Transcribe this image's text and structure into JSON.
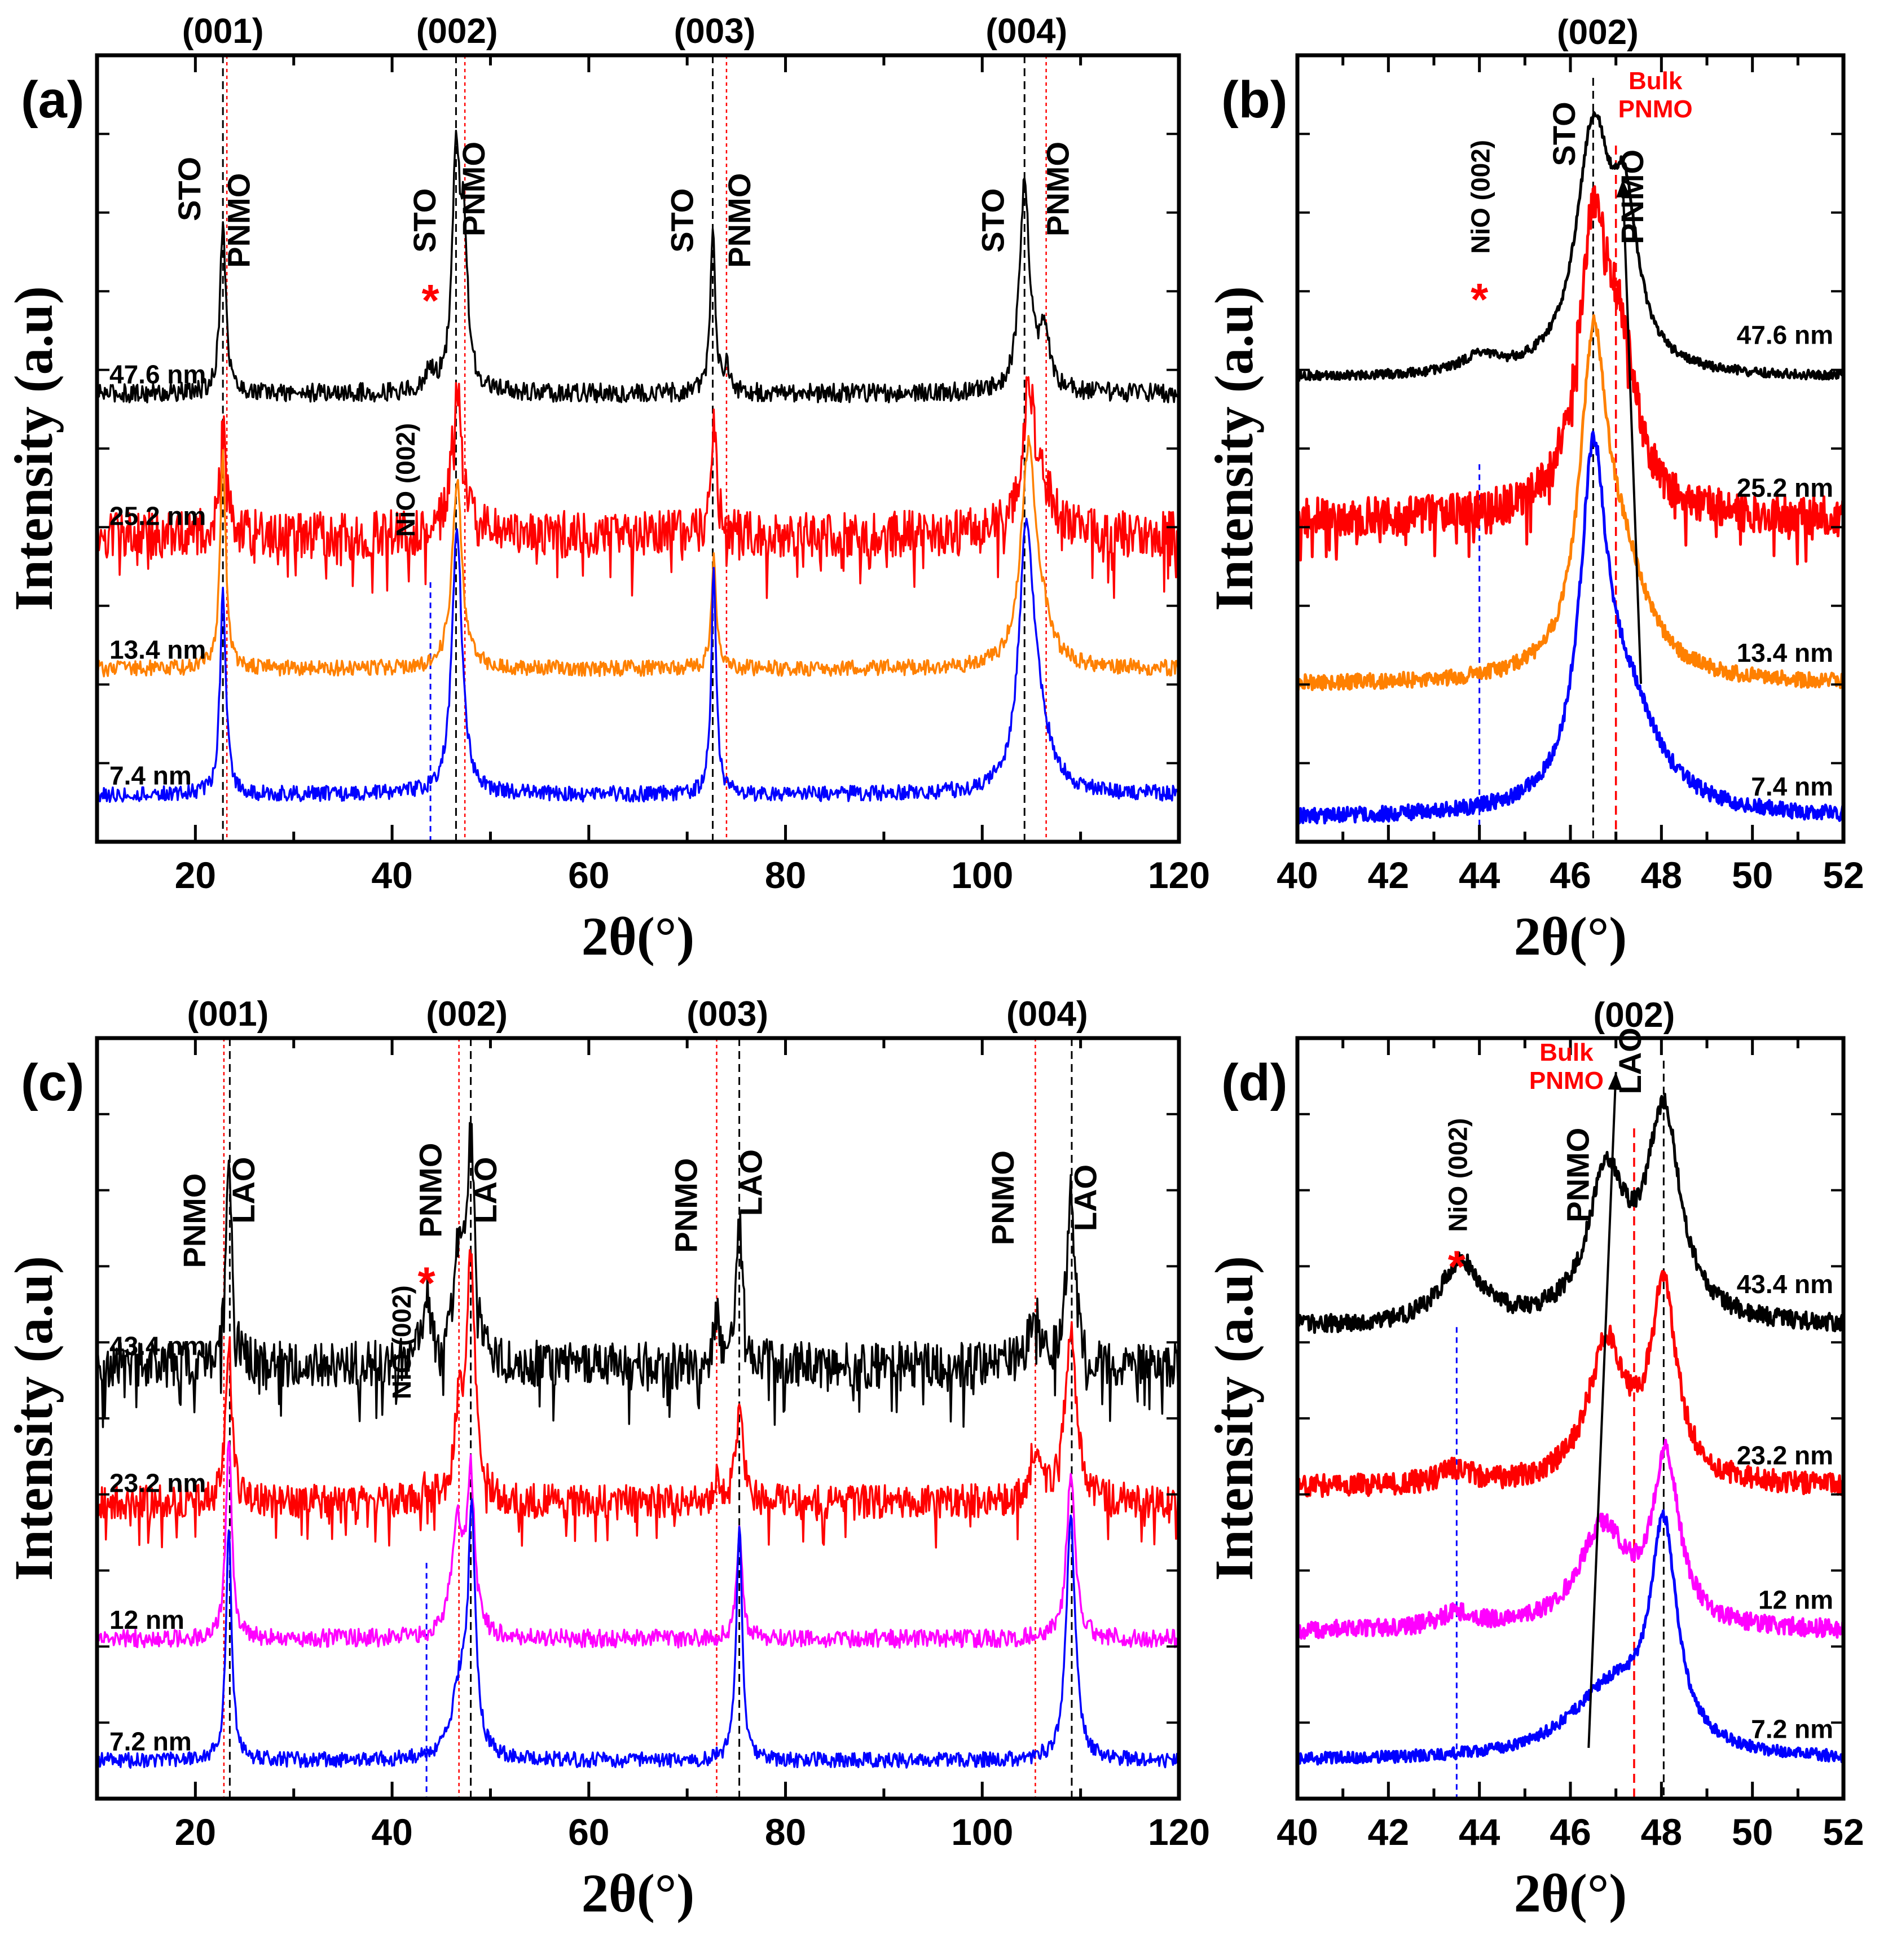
{
  "chart_data": [
    {
      "id": "a",
      "type": "line",
      "panel_label": "(a)",
      "xlabel": "2θ(°)",
      "ylabel": "Intensity (a.u)",
      "xlim": [
        10,
        120
      ],
      "xticks": [
        20,
        40,
        60,
        80,
        100,
        120
      ],
      "reflections": [
        {
          "label": "(001)",
          "x": 22.8
        },
        {
          "label": "(002)",
          "x": 46.6
        },
        {
          "label": "(003)",
          "x": 72.8
        },
        {
          "label": "(004)",
          "x": 104.5
        }
      ],
      "substrate": "STO",
      "film": "PNMO",
      "substrate_lines": [
        22.8,
        46.5,
        72.6,
        104.3
      ],
      "film_lines": [
        23.2,
        47.4,
        74.0,
        106.5
      ],
      "nio": {
        "label": "NiO (002)",
        "x": 43.9,
        "marker": "*"
      },
      "peak_labels": [
        {
          "text": "STO",
          "x": 20.5,
          "y": 0.83
        },
        {
          "text": "PNMO",
          "x": 25.5,
          "y": 0.79
        },
        {
          "text": "STO",
          "x": 44.4,
          "y": 0.79
        },
        {
          "text": "PNMO",
          "x": 49.4,
          "y": 0.83
        },
        {
          "text": "STO",
          "x": 70.6,
          "y": 0.79
        },
        {
          "text": "PNMO",
          "x": 76.4,
          "y": 0.79
        },
        {
          "text": "STO",
          "x": 102.2,
          "y": 0.79
        },
        {
          "text": "PNMO",
          "x": 108.8,
          "y": 0.83
        }
      ],
      "series": [
        {
          "name": "47.6 nm",
          "color": "#000000",
          "baseline": 0.57,
          "noise": 0.012,
          "peaks": [
            [
              22.8,
              0.22,
              0.35
            ],
            [
              43.9,
              0.025,
              0.6
            ],
            [
              46.5,
              0.29,
              0.45
            ],
            [
              47.3,
              0.18,
              0.45
            ],
            [
              72.6,
              0.21,
              0.3
            ],
            [
              74.0,
              0.03,
              0.4
            ],
            [
              104.3,
              0.26,
              0.6
            ],
            [
              106.3,
              0.07,
              0.7
            ]
          ]
        },
        {
          "name": "25.2 nm",
          "color": "#ff0000",
          "baseline": 0.39,
          "noise": 0.03,
          "peaks": [
            [
              22.8,
              0.13,
              0.4
            ],
            [
              46.6,
              0.19,
              0.6
            ],
            [
              72.7,
              0.15,
              0.35
            ],
            [
              104.7,
              0.18,
              0.8
            ],
            [
              106.3,
              0.04,
              1.2
            ]
          ]
        },
        {
          "name": "13.4 nm",
          "color": "#ff8000",
          "baseline": 0.22,
          "noise": 0.01,
          "peaks": [
            [
              22.8,
              0.27,
              0.35
            ],
            [
              46.6,
              0.24,
              0.6
            ],
            [
              72.7,
              0.14,
              0.3
            ],
            [
              104.7,
              0.27,
              0.9
            ],
            [
              106.0,
              0.04,
              1.2
            ]
          ]
        },
        {
          "name": "7.4 nm",
          "color": "#0000ff",
          "baseline": 0.06,
          "noise": 0.01,
          "peaks": [
            [
              22.8,
              0.26,
              0.35
            ],
            [
              46.6,
              0.34,
              0.6
            ],
            [
              72.7,
              0.29,
              0.3
            ],
            [
              104.5,
              0.32,
              0.9
            ],
            [
              105.8,
              0.06,
              1.4
            ]
          ]
        }
      ]
    },
    {
      "id": "b",
      "type": "line",
      "panel_label": "(b)",
      "xlabel": "2θ(°)",
      "ylabel": "Intensity (a.u)",
      "xlim": [
        40,
        52
      ],
      "xticks": [
        40,
        42,
        44,
        46,
        48,
        50,
        52
      ],
      "title": "(002)",
      "substrate_lines": [
        46.5
      ],
      "bulk": {
        "line1": "Bulk",
        "line2": "PNMO",
        "x": 47.0
      },
      "nio": {
        "label": "NiO (002)",
        "x": 44.0,
        "marker": "*"
      },
      "peak_labels": [
        {
          "text": "STO",
          "x": 46.1,
          "y": 0.9
        },
        {
          "text": "PNMO",
          "x": 47.6,
          "y": 0.82
        }
      ],
      "arrow": {
        "x_start": 47.55,
        "x_end": 47.15
      },
      "series": [
        {
          "name": "47.6 nm",
          "color": "#000000",
          "baseline": 0.59,
          "noise": 0.006,
          "peaks": [
            [
              44.0,
              0.02,
              0.5
            ],
            [
              46.5,
              0.3,
              0.45
            ],
            [
              47.2,
              0.18,
              0.35
            ]
          ]
        },
        {
          "name": "25.2 nm",
          "color": "#ff0000",
          "baseline": 0.41,
          "noise": 0.025,
          "peaks": [
            [
              46.5,
              0.34,
              0.4
            ],
            [
              47.1,
              0.17,
              0.45
            ]
          ]
        },
        {
          "name": "13.4 nm",
          "color": "#ff8000",
          "baseline": 0.2,
          "noise": 0.01,
          "peaks": [
            [
              46.5,
              0.38,
              0.35
            ],
            [
              47.1,
              0.14,
              0.7
            ]
          ]
        },
        {
          "name": "7.4 nm",
          "color": "#0000ff",
          "baseline": 0.03,
          "noise": 0.01,
          "peaks": [
            [
              46.5,
              0.4,
              0.35
            ],
            [
              47.2,
              0.14,
              0.85
            ]
          ]
        }
      ]
    },
    {
      "id": "c",
      "type": "line",
      "panel_label": "(c)",
      "xlabel": "2θ(°)",
      "ylabel": "Intensity (a.u)",
      "xlim": [
        10,
        120
      ],
      "xticks": [
        20,
        40,
        60,
        80,
        100,
        120
      ],
      "reflections": [
        {
          "label": "(001)",
          "x": 23.3
        },
        {
          "label": "(002)",
          "x": 47.6
        },
        {
          "label": "(003)",
          "x": 74.1
        },
        {
          "label": "(004)",
          "x": 106.6
        }
      ],
      "substrate": "LAO",
      "film": "PNMO",
      "substrate_lines": [
        23.5,
        48.0,
        75.3,
        109.1
      ],
      "film_lines": [
        22.9,
        46.8,
        73.0,
        105.4
      ],
      "nio": {
        "label": "NiO (002)",
        "x": 43.5,
        "marker": "*"
      },
      "peak_labels": [
        {
          "text": "PNMO",
          "x": 21.0,
          "y": 0.76
        },
        {
          "text": "LAO",
          "x": 26.0,
          "y": 0.8
        },
        {
          "text": "PNMO",
          "x": 45.0,
          "y": 0.8
        },
        {
          "text": "LAO",
          "x": 50.6,
          "y": 0.8
        },
        {
          "text": "PNMO",
          "x": 71.0,
          "y": 0.78
        },
        {
          "text": "LAO",
          "x": 77.6,
          "y": 0.81
        },
        {
          "text": "PNMO",
          "x": 103.2,
          "y": 0.79
        },
        {
          "text": "LAO",
          "x": 111.6,
          "y": 0.79
        }
      ],
      "series": [
        {
          "name": "43.4 nm",
          "color": "#000000",
          "baseline": 0.57,
          "noise": 0.03,
          "peaks": [
            [
              23.4,
              0.28,
              0.35
            ],
            [
              43.5,
              0.09,
              0.5
            ],
            [
              46.8,
              0.17,
              0.5
            ],
            [
              48.0,
              0.28,
              0.45
            ],
            [
              73.0,
              0.06,
              0.35
            ],
            [
              75.3,
              0.19,
              0.4
            ],
            [
              105.3,
              0.07,
              0.6
            ],
            [
              109.0,
              0.23,
              0.5
            ]
          ]
        },
        {
          "name": "23.2 nm",
          "color": "#ff0000",
          "baseline": 0.39,
          "noise": 0.022,
          "peaks": [
            [
              23.4,
              0.22,
              0.35
            ],
            [
              43.5,
              0.02,
              0.5
            ],
            [
              46.8,
              0.11,
              0.5
            ],
            [
              48.0,
              0.31,
              0.5
            ],
            [
              73.0,
              0.03,
              0.35
            ],
            [
              75.3,
              0.13,
              0.4
            ],
            [
              105.3,
              0.06,
              0.6
            ],
            [
              109.0,
              0.22,
              0.7
            ]
          ]
        },
        {
          "name": "12 nm",
          "color": "#ff00ff",
          "baseline": 0.21,
          "noise": 0.012,
          "peaks": [
            [
              23.4,
              0.27,
              0.35
            ],
            [
              46.6,
              0.15,
              0.7
            ],
            [
              48.0,
              0.2,
              0.45
            ],
            [
              75.3,
              0.14,
              0.35
            ],
            [
              109.0,
              0.22,
              0.5
            ]
          ]
        },
        {
          "name": "7.2 nm",
          "color": "#0000ff",
          "baseline": 0.05,
          "noise": 0.01,
          "peaks": [
            [
              23.4,
              0.3,
              0.35
            ],
            [
              46.9,
              0.09,
              1.0
            ],
            [
              48.1,
              0.3,
              0.45
            ],
            [
              75.3,
              0.31,
              0.35
            ],
            [
              109.0,
              0.32,
              0.55
            ]
          ]
        }
      ]
    },
    {
      "id": "d",
      "type": "line",
      "panel_label": "(d)",
      "xlabel": "2θ(°)",
      "ylabel": "Intensity (a.u)",
      "xlim": [
        40,
        52
      ],
      "xticks": [
        40,
        42,
        44,
        46,
        48,
        50,
        52
      ],
      "title": "(002)",
      "substrate_lines": [
        48.05
      ],
      "bulk": {
        "line1": "Bulk",
        "line2": "PNMO",
        "x": 47.4
      },
      "nio": {
        "label": "NiO (002)",
        "x": 43.5,
        "marker": "*"
      },
      "peak_labels": [
        {
          "text": "PNMO",
          "x": 46.4,
          "y": 0.82
        },
        {
          "text": "LAO",
          "x": 47.55,
          "y": 0.97
        }
      ],
      "arrow": {
        "x_start": 46.4,
        "x_end": 47.0
      },
      "series": [
        {
          "name": "43.4 nm",
          "color": "#000000",
          "baseline": 0.62,
          "noise": 0.012,
          "peaks": [
            [
              43.6,
              0.08,
              0.55
            ],
            [
              46.8,
              0.19,
              0.5
            ],
            [
              48.05,
              0.27,
              0.45
            ]
          ]
        },
        {
          "name": "23.2 nm",
          "color": "#ff0000",
          "baseline": 0.41,
          "noise": 0.015,
          "peaks": [
            [
              43.5,
              0.02,
              0.4
            ],
            [
              46.8,
              0.18,
              0.5
            ],
            [
              48.05,
              0.25,
              0.35
            ]
          ]
        },
        {
          "name": "12 nm",
          "color": "#ff00ff",
          "baseline": 0.22,
          "noise": 0.012,
          "peaks": [
            [
              43.5,
              0.02,
              0.5
            ],
            [
              46.7,
              0.13,
              0.65
            ],
            [
              48.1,
              0.22,
              0.35
            ]
          ]
        },
        {
          "name": "7.2 nm",
          "color": "#0000ff",
          "baseline": 0.05,
          "noise": 0.008,
          "peaks": [
            [
              46.9,
              0.09,
              1.1
            ],
            [
              48.05,
              0.28,
              0.35
            ]
          ]
        }
      ]
    }
  ]
}
